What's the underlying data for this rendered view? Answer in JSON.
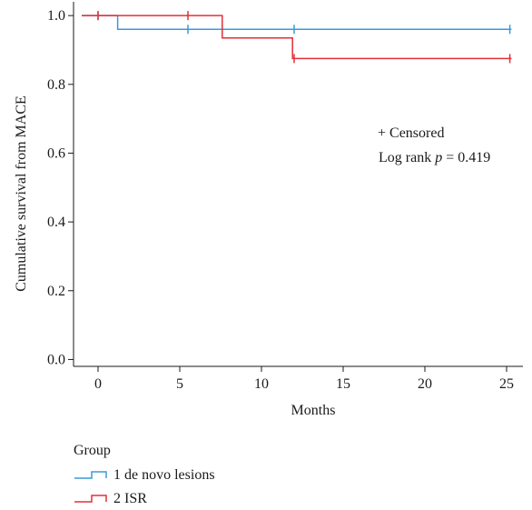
{
  "chart_data": {
    "type": "line",
    "subtype": "kaplan-meier-step",
    "xlabel": "Months",
    "ylabel": "Cumulative survival from MACE",
    "xlim": [
      -1.5,
      26
    ],
    "ylim": [
      -0.02,
      1.04
    ],
    "xticks": [
      "0",
      "5",
      "10",
      "15",
      "20",
      "25"
    ],
    "yticks": [
      "0.0",
      "0.2",
      "0.4",
      "0.6",
      "0.8",
      "1.0"
    ],
    "grid": false,
    "series": [
      {
        "name": "1 de novo lesions",
        "color": "#3a9ad9",
        "steps": [
          [
            -1,
            1.0
          ],
          [
            1.2,
            1.0
          ],
          [
            1.2,
            0.96
          ],
          [
            25.3,
            0.96
          ]
        ],
        "censored": [
          [
            0,
            1.0
          ],
          [
            5.5,
            0.96
          ],
          [
            12,
            0.96
          ],
          [
            25.2,
            0.96
          ]
        ]
      },
      {
        "name": "2 ISR",
        "color": "#e0303a",
        "steps": [
          [
            -1,
            1.0
          ],
          [
            7.6,
            1.0
          ],
          [
            7.6,
            0.935
          ],
          [
            11.9,
            0.935
          ],
          [
            11.9,
            0.875
          ],
          [
            25.3,
            0.875
          ]
        ],
        "censored": [
          [
            0,
            1.0
          ],
          [
            5.5,
            1.0
          ],
          [
            12,
            0.875
          ],
          [
            25.2,
            0.875
          ]
        ]
      }
    ],
    "annotations": {
      "censored": "+ Censored",
      "logrank_prefix": "Log rank ",
      "logrank_p": "p",
      "logrank_value": " = 0.419"
    },
    "legend": {
      "title": "Group",
      "position": "bottom-left",
      "items": [
        "1 de novo lesions",
        "2 ISR"
      ]
    }
  }
}
